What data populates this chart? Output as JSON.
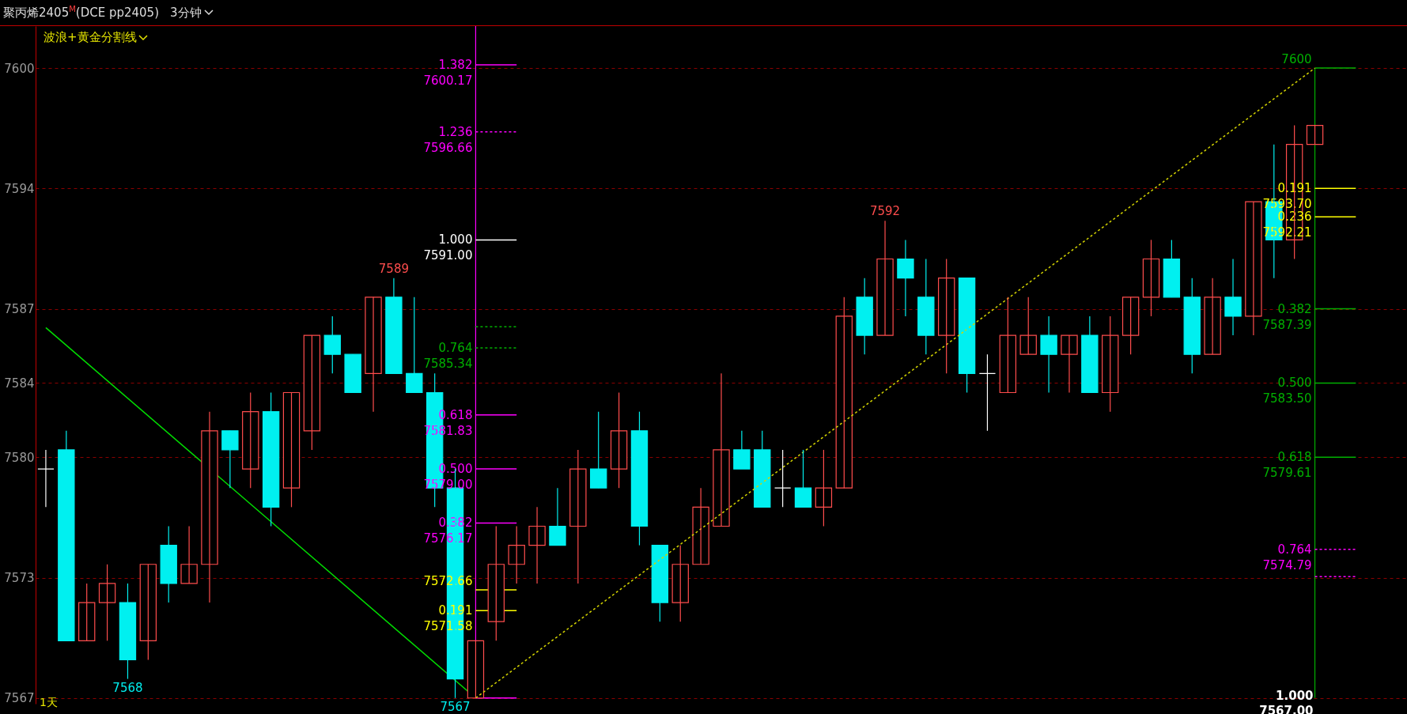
{
  "chart_data": {
    "type": "candlestick",
    "title": "聚丙烯2405$^{M}$(DCE pp2405)",
    "subtitle": "3分钟",
    "categories": [
      null,
      null,
      null,
      null,
      null,
      null,
      null,
      null,
      null,
      null,
      null,
      null,
      null,
      null,
      null,
      null,
      null,
      null,
      null,
      null,
      null,
      null,
      null,
      null,
      null,
      null,
      null,
      null,
      null,
      null,
      null,
      null,
      null,
      null,
      null,
      null,
      null,
      null,
      null,
      null,
      null,
      null,
      null,
      null,
      null,
      null,
      null,
      null,
      null,
      null,
      null,
      null,
      null,
      null,
      null,
      null,
      null,
      null,
      null,
      null,
      null,
      null,
      null,
      null,
      null,
      null,
      null
    ],
    "ohlc": [
      [
        7579,
        7580,
        7577,
        7579
      ],
      [
        7580,
        7581,
        7570,
        7570
      ],
      [
        7570,
        7573,
        7570,
        7572
      ],
      [
        7572,
        7574,
        7570,
        7573
      ],
      [
        7572,
        7573,
        7568,
        7569
      ],
      [
        7570,
        7574,
        7569,
        7574
      ],
      [
        7575,
        7576,
        7572,
        7573
      ],
      [
        7573,
        7576,
        7573,
        7574
      ],
      [
        7574,
        7582,
        7572,
        7581
      ],
      [
        7581,
        7581,
        7578,
        7580
      ],
      [
        7579,
        7583,
        7578,
        7582
      ],
      [
        7582,
        7583,
        7576,
        7577
      ],
      [
        7578,
        7583,
        7577,
        7583
      ],
      [
        7581,
        7586,
        7580,
        7586
      ],
      [
        7586,
        7587,
        7584,
        7585
      ],
      [
        7585,
        7585,
        7583,
        7583
      ],
      [
        7584,
        7588,
        7582,
        7588
      ],
      [
        7588,
        7589,
        7584,
        7584
      ],
      [
        7584,
        7588,
        7583,
        7583
      ],
      [
        7583,
        7584,
        7577,
        7578
      ],
      [
        7578,
        7579,
        7567,
        7568
      ],
      [
        7567,
        7570,
        7567,
        7570
      ],
      [
        7571,
        7576,
        7570,
        7574
      ],
      [
        7574,
        7576,
        7573,
        7575
      ],
      [
        7575,
        7577,
        7573,
        7576
      ],
      [
        7576,
        7578,
        7575,
        7575
      ],
      [
        7576,
        7580,
        7573,
        7579
      ],
      [
        7579,
        7582,
        7578,
        7578
      ],
      [
        7579,
        7583,
        7578,
        7581
      ],
      [
        7581,
        7582,
        7575,
        7576
      ],
      [
        7575,
        7575,
        7571,
        7572
      ],
      [
        7572,
        7575,
        7571,
        7574
      ],
      [
        7574,
        7578,
        7574,
        7577
      ],
      [
        7576,
        7584,
        7576,
        7580
      ],
      [
        7580,
        7581,
        7579,
        7579
      ],
      [
        7580,
        7581,
        7577,
        7577
      ],
      [
        7578,
        7580,
        7577,
        7578
      ],
      [
        7578,
        7580,
        7577,
        7577
      ],
      [
        7577,
        7580,
        7576,
        7578
      ],
      [
        7578,
        7588,
        7578,
        7587
      ],
      [
        7588,
        7589,
        7585,
        7586
      ],
      [
        7586,
        7592,
        7586,
        7590
      ],
      [
        7590,
        7591,
        7587,
        7589
      ],
      [
        7588,
        7590,
        7585,
        7586
      ],
      [
        7586,
        7590,
        7584,
        7589
      ],
      [
        7589,
        7589,
        7583,
        7584
      ],
      [
        7584,
        7585,
        7581,
        7584
      ],
      [
        7583,
        7588,
        7583,
        7586
      ],
      [
        7585,
        7588,
        7585,
        7586
      ],
      [
        7586,
        7587,
        7583,
        7585
      ],
      [
        7585,
        7586,
        7583,
        7586
      ],
      [
        7586,
        7587,
        7583,
        7583
      ],
      [
        7583,
        7587,
        7582,
        7586
      ],
      [
        7586,
        7588,
        7585,
        7588
      ],
      [
        7588,
        7591,
        7587,
        7590
      ],
      [
        7590,
        7591,
        7588,
        7588
      ],
      [
        7588,
        7589,
        7584,
        7585
      ],
      [
        7585,
        7589,
        7585,
        7588
      ],
      [
        7588,
        7590,
        7586,
        7587
      ],
      [
        7587,
        7593,
        7586,
        7593
      ],
      [
        7593,
        7596,
        7589,
        7591
      ],
      [
        7591,
        7597,
        7590,
        7596
      ],
      [
        7596,
        7597,
        7596,
        7597
      ],
      null,
      null,
      null,
      null
    ],
    "colors": [
      "#ffffff",
      "#00f0f0",
      "#ff4d4d",
      "#ff4d4d",
      "#00f0f0",
      "#ff4d4d",
      "#00f0f0",
      "#ff4d4d",
      "#ff4d4d",
      "#00f0f0",
      "#ff4d4d",
      "#00f0f0",
      "#ff4d4d",
      "#ff4d4d",
      "#00f0f0",
      "#00f0f0",
      "#ff4d4d",
      "#00f0f0",
      "#00f0f0",
      "#00f0f0",
      "#00f0f0",
      "#ff4d4d",
      "#ff4d4d",
      "#ff4d4d",
      "#ff4d4d",
      "#00f0f0",
      "#ff4d4d",
      "#00f0f0",
      "#ff4d4d",
      "#00f0f0",
      "#00f0f0",
      "#ff4d4d",
      "#ff4d4d",
      "#ff4d4d",
      "#00f0f0",
      "#00f0f0",
      "#ffffff",
      "#00f0f0",
      "#ff4d4d",
      "#ff4d4d",
      "#00f0f0",
      "#ff4d4d",
      "#00f0f0",
      "#00f0f0",
      "#ff4d4d",
      "#00f0f0",
      "#ffffff",
      "#ff4d4d",
      "#ff4d4d",
      "#00f0f0",
      "#ff4d4d",
      "#00f0f0",
      "#ff4d4d",
      "#ff4d4d",
      "#ff4d4d",
      "#00f0f0",
      "#00f0f0",
      "#ff4d4d",
      "#00f0f0",
      "#ff4d4d",
      "#00f0f0",
      "#ff4d4d",
      "#ff4d4d",
      null,
      null,
      null,
      null
    ],
    "series": [
      {
        "type": "line",
        "color": "#00e000",
        "values": [
          7586.4,
          null,
          null,
          null,
          null,
          null,
          null,
          null,
          null,
          null,
          null,
          null,
          null,
          null,
          null,
          null,
          null,
          null,
          null,
          null,
          null,
          7567,
          null,
          null,
          null,
          null,
          null,
          null,
          null,
          null,
          null,
          null,
          null,
          null,
          null,
          null,
          null,
          null,
          null,
          null,
          null,
          null,
          null,
          null,
          null,
          null,
          null,
          null,
          null,
          null,
          null,
          null,
          null,
          null,
          null,
          null,
          null,
          null,
          null,
          null,
          null,
          null,
          null,
          null,
          null,
          null,
          null
        ]
      },
      {
        "type": "line",
        "color": "#d4d400",
        "line_style": "dotted",
        "values": [
          null,
          null,
          null,
          null,
          null,
          null,
          null,
          null,
          null,
          null,
          null,
          null,
          null,
          null,
          null,
          null,
          null,
          null,
          null,
          null,
          null,
          7567,
          null,
          null,
          null,
          null,
          null,
          null,
          null,
          null,
          null,
          null,
          null,
          null,
          null,
          null,
          null,
          null,
          null,
          null,
          null,
          null,
          null,
          null,
          null,
          null,
          null,
          null,
          null,
          null,
          null,
          null,
          null,
          null,
          null,
          null,
          null,
          null,
          null,
          null,
          null,
          null,
          7600,
          null,
          null,
          null,
          null
        ]
      },
      {
        "type": "line",
        "color": "#ff00ff",
        "name": "1.382\n7600.17",
        "values": [
          null,
          null,
          null,
          null,
          null,
          null,
          null,
          null,
          null,
          null,
          null,
          null,
          null,
          null,
          null,
          null,
          null,
          null,
          null,
          null,
          null,
          7600.17,
          null,
          7600.17,
          null,
          null,
          null,
          null,
          null,
          null,
          null,
          null,
          null,
          null,
          null,
          null,
          null,
          null,
          null,
          null,
          null,
          null,
          null,
          null,
          null,
          null,
          null,
          null,
          null,
          null,
          null,
          null,
          null,
          null,
          null,
          null,
          null,
          null,
          null,
          null,
          null,
          null,
          null,
          null,
          null,
          null,
          null
        ]
      },
      {
        "type": "line",
        "color": "#ff00ff",
        "line_style": "dotted",
        "name": "1.236\n7596.66",
        "values": [
          null,
          null,
          null,
          null,
          null,
          null,
          null,
          null,
          null,
          null,
          null,
          null,
          null,
          null,
          null,
          null,
          null,
          null,
          null,
          null,
          null,
          7596.66,
          null,
          7596.66,
          null,
          null,
          null,
          null,
          null,
          null,
          null,
          null,
          null,
          null,
          null,
          null,
          null,
          null,
          null,
          null,
          null,
          null,
          null,
          null,
          null,
          null,
          null,
          null,
          null,
          null,
          null,
          null,
          null,
          null,
          null,
          null,
          null,
          null,
          null,
          null,
          null,
          null,
          null,
          null,
          null,
          null,
          null
        ]
      },
      {
        "type": "line",
        "color": "#ffffff",
        "name": "1.000\n7591.00",
        "values": [
          null,
          null,
          null,
          null,
          null,
          null,
          null,
          null,
          null,
          null,
          null,
          null,
          null,
          null,
          null,
          null,
          null,
          null,
          null,
          null,
          null,
          7591.0,
          null,
          7591.0,
          null,
          null,
          null,
          null,
          null,
          null,
          null,
          null,
          null,
          null,
          null,
          null,
          null,
          null,
          null,
          null,
          null,
          null,
          null,
          null,
          null,
          null,
          null,
          null,
          null,
          null,
          null,
          null,
          null,
          null,
          null,
          null,
          null,
          null,
          null,
          null,
          null,
          null,
          null,
          null,
          null,
          null,
          null
        ]
      },
      {
        "type": "line",
        "color": "#00b000",
        "line_style": "dotted",
        "values": [
          null,
          null,
          null,
          null,
          null,
          null,
          null,
          null,
          null,
          null,
          null,
          null,
          null,
          null,
          null,
          null,
          null,
          null,
          null,
          null,
          null,
          7586.45,
          null,
          7586.45,
          null,
          null,
          null,
          null,
          null,
          null,
          null,
          null,
          null,
          null,
          null,
          null,
          null,
          null,
          null,
          null,
          null,
          null,
          null,
          null,
          null,
          null,
          null,
          null,
          null,
          null,
          null,
          null,
          null,
          null,
          null,
          null,
          null,
          null,
          null,
          null,
          null,
          null,
          null,
          null,
          null,
          null,
          null
        ]
      },
      {
        "type": "line",
        "color": "#00b000",
        "line_style": "dotted",
        "name": "0.764\n7585.34",
        "values": [
          null,
          null,
          null,
          null,
          null,
          null,
          null,
          null,
          null,
          null,
          null,
          null,
          null,
          null,
          null,
          null,
          null,
          null,
          null,
          null,
          null,
          7585.34,
          null,
          7585.34,
          null,
          null,
          null,
          null,
          null,
          null,
          null,
          null,
          null,
          null,
          null,
          null,
          null,
          null,
          null,
          null,
          null,
          null,
          null,
          null,
          null,
          null,
          null,
          null,
          null,
          null,
          null,
          null,
          null,
          null,
          null,
          null,
          null,
          null,
          null,
          null,
          null,
          null,
          null,
          null,
          null,
          null,
          null
        ]
      },
      {
        "type": "line",
        "color": "#ff00ff",
        "name": "0.618\n7581.83",
        "values": [
          null,
          null,
          null,
          null,
          null,
          null,
          null,
          null,
          null,
          null,
          null,
          null,
          null,
          null,
          null,
          null,
          null,
          null,
          null,
          null,
          null,
          7581.83,
          null,
          7581.83,
          null,
          null,
          null,
          null,
          null,
          null,
          null,
          null,
          null,
          null,
          null,
          null,
          null,
          null,
          null,
          null,
          null,
          null,
          null,
          null,
          null,
          null,
          null,
          null,
          null,
          null,
          null,
          null,
          null,
          null,
          null,
          null,
          null,
          null,
          null,
          null,
          null,
          null,
          null,
          null,
          null,
          null,
          null
        ]
      },
      {
        "type": "line",
        "color": "#ff00ff",
        "name": "0.500\n7579.00",
        "values": [
          null,
          null,
          null,
          null,
          null,
          null,
          null,
          null,
          null,
          null,
          null,
          null,
          null,
          null,
          null,
          null,
          null,
          null,
          null,
          null,
          null,
          7579.0,
          null,
          7579.0,
          null,
          null,
          null,
          null,
          null,
          null,
          null,
          null,
          null,
          null,
          null,
          null,
          null,
          null,
          null,
          null,
          null,
          null,
          null,
          null,
          null,
          null,
          null,
          null,
          null,
          null,
          null,
          null,
          null,
          null,
          null,
          null,
          null,
          null,
          null,
          null,
          null,
          null,
          null,
          null,
          null,
          null,
          null
        ]
      },
      {
        "type": "line",
        "color": "#ff00ff",
        "name": "0.382\n7576.17",
        "values": [
          null,
          null,
          null,
          null,
          null,
          null,
          null,
          null,
          null,
          null,
          null,
          null,
          null,
          null,
          null,
          null,
          null,
          null,
          null,
          null,
          null,
          7576.17,
          null,
          7576.17,
          null,
          null,
          null,
          null,
          null,
          null,
          null,
          null,
          null,
          null,
          null,
          null,
          null,
          null,
          null,
          null,
          null,
          null,
          null,
          null,
          null,
          null,
          null,
          null,
          null,
          null,
          null,
          null,
          null,
          null,
          null,
          null,
          null,
          null,
          null,
          null,
          null,
          null,
          null,
          null,
          null,
          null,
          null
        ]
      },
      {
        "type": "line",
        "color": "#ffff00",
        "name": "7572.66",
        "values": [
          null,
          null,
          null,
          null,
          null,
          null,
          null,
          null,
          null,
          null,
          null,
          null,
          null,
          null,
          null,
          null,
          null,
          null,
          null,
          null,
          null,
          7572.66,
          null,
          7572.66,
          null,
          null,
          null,
          null,
          null,
          null,
          null,
          null,
          null,
          null,
          null,
          null,
          null,
          null,
          null,
          null,
          null,
          null,
          null,
          null,
          null,
          null,
          null,
          null,
          null,
          null,
          null,
          null,
          null,
          null,
          null,
          null,
          null,
          null,
          null,
          null,
          null,
          null,
          null,
          null,
          null,
          null,
          null
        ]
      },
      {
        "type": "line",
        "color": "#ffff00",
        "name": "0.191\n7571.58",
        "values": [
          null,
          null,
          null,
          null,
          null,
          null,
          null,
          null,
          null,
          null,
          null,
          null,
          null,
          null,
          null,
          null,
          null,
          null,
          null,
          null,
          null,
          7571.58,
          null,
          7571.58,
          null,
          null,
          null,
          null,
          null,
          null,
          null,
          null,
          null,
          null,
          null,
          null,
          null,
          null,
          null,
          null,
          null,
          null,
          null,
          null,
          null,
          null,
          null,
          null,
          null,
          null,
          null,
          null,
          null,
          null,
          null,
          null,
          null,
          null,
          null,
          null,
          null,
          null,
          null,
          null,
          null,
          null,
          null
        ]
      },
      {
        "type": "line",
        "color": "#ff00ff",
        "values": [
          null,
          null,
          null,
          null,
          null,
          null,
          null,
          null,
          null,
          null,
          null,
          null,
          null,
          null,
          null,
          null,
          null,
          null,
          null,
          null,
          null,
          7567,
          null,
          7567,
          null,
          null,
          null,
          null,
          null,
          null,
          null,
          null,
          null,
          null,
          null,
          null,
          null,
          null,
          null,
          null,
          null,
          null,
          null,
          null,
          null,
          null,
          null,
          null,
          null,
          null,
          null,
          null,
          null,
          null,
          null,
          null,
          null,
          null,
          null,
          null,
          null,
          null,
          null,
          null,
          null,
          null,
          null
        ]
      },
      {
        "type": "line",
        "color": "#00b000",
        "name": "7600",
        "values": [
          null,
          null,
          null,
          null,
          null,
          null,
          null,
          null,
          null,
          null,
          null,
          null,
          null,
          null,
          null,
          null,
          null,
          null,
          null,
          null,
          null,
          null,
          null,
          null,
          null,
          null,
          null,
          null,
          null,
          null,
          null,
          null,
          null,
          null,
          null,
          null,
          null,
          null,
          null,
          null,
          null,
          null,
          null,
          null,
          null,
          null,
          null,
          null,
          null,
          null,
          null,
          null,
          null,
          null,
          null,
          null,
          null,
          null,
          null,
          null,
          null,
          null,
          7600,
          null,
          7600,
          null,
          null
        ]
      },
      {
        "type": "line",
        "color": "#ffff00",
        "name": "0.191\n7593.70",
        "values": [
          null,
          null,
          null,
          null,
          null,
          null,
          null,
          null,
          null,
          null,
          null,
          null,
          null,
          null,
          null,
          null,
          null,
          null,
          null,
          null,
          null,
          null,
          null,
          null,
          null,
          null,
          null,
          null,
          null,
          null,
          null,
          null,
          null,
          null,
          null,
          null,
          null,
          null,
          null,
          null,
          null,
          null,
          null,
          null,
          null,
          null,
          null,
          null,
          null,
          null,
          null,
          null,
          null,
          null,
          null,
          null,
          null,
          null,
          null,
          null,
          null,
          null,
          7593.7,
          null,
          7593.7,
          null,
          null
        ]
      },
      {
        "type": "line",
        "color": "#ffff00",
        "name": "0.236\n7592.21",
        "values": [
          null,
          null,
          null,
          null,
          null,
          null,
          null,
          null,
          null,
          null,
          null,
          null,
          null,
          null,
          null,
          null,
          null,
          null,
          null,
          null,
          null,
          null,
          null,
          null,
          null,
          null,
          null,
          null,
          null,
          null,
          null,
          null,
          null,
          null,
          null,
          null,
          null,
          null,
          null,
          null,
          null,
          null,
          null,
          null,
          null,
          null,
          null,
          null,
          null,
          null,
          null,
          null,
          null,
          null,
          null,
          null,
          null,
          null,
          null,
          null,
          null,
          null,
          7592.21,
          null,
          7592.21,
          null,
          null
        ]
      },
      {
        "type": "line",
        "color": "#00b000",
        "name": "0.382\n7587.39",
        "values": [
          null,
          null,
          null,
          null,
          null,
          null,
          null,
          null,
          null,
          null,
          null,
          null,
          null,
          null,
          null,
          null,
          null,
          null,
          null,
          null,
          null,
          null,
          null,
          null,
          null,
          null,
          null,
          null,
          null,
          null,
          null,
          null,
          null,
          null,
          null,
          null,
          null,
          null,
          null,
          null,
          null,
          null,
          null,
          null,
          null,
          null,
          null,
          null,
          null,
          null,
          null,
          null,
          null,
          null,
          null,
          null,
          null,
          null,
          null,
          null,
          null,
          null,
          7587.39,
          null,
          7587.39,
          null,
          null
        ]
      },
      {
        "type": "line",
        "color": "#00b000",
        "name": "0.500\n7583.50",
        "values": [
          null,
          null,
          null,
          null,
          null,
          null,
          null,
          null,
          null,
          null,
          null,
          null,
          null,
          null,
          null,
          null,
          null,
          null,
          null,
          null,
          null,
          null,
          null,
          null,
          null,
          null,
          null,
          null,
          null,
          null,
          null,
          null,
          null,
          null,
          null,
          null,
          null,
          null,
          null,
          null,
          null,
          null,
          null,
          null,
          null,
          null,
          null,
          null,
          null,
          null,
          null,
          null,
          null,
          null,
          null,
          null,
          null,
          null,
          null,
          null,
          null,
          null,
          7583.5,
          null,
          7583.5,
          null,
          null
        ]
      },
      {
        "type": "line",
        "color": "#00b000",
        "name": "0.618\n7579.61",
        "values": [
          null,
          null,
          null,
          null,
          null,
          null,
          null,
          null,
          null,
          null,
          null,
          null,
          null,
          null,
          null,
          null,
          null,
          null,
          null,
          null,
          null,
          null,
          null,
          null,
          null,
          null,
          null,
          null,
          null,
          null,
          null,
          null,
          null,
          null,
          null,
          null,
          null,
          null,
          null,
          null,
          null,
          null,
          null,
          null,
          null,
          null,
          null,
          null,
          null,
          null,
          null,
          null,
          null,
          null,
          null,
          null,
          null,
          null,
          null,
          null,
          null,
          null,
          7579.61,
          null,
          7579.61,
          null,
          null
        ]
      },
      {
        "type": "line",
        "color": "#ff00ff",
        "line_style": "dotted",
        "name": "0.764\n7574.79",
        "values": [
          null,
          null,
          null,
          null,
          null,
          null,
          null,
          null,
          null,
          null,
          null,
          null,
          null,
          null,
          null,
          null,
          null,
          null,
          null,
          null,
          null,
          null,
          null,
          null,
          null,
          null,
          null,
          null,
          null,
          null,
          null,
          null,
          null,
          null,
          null,
          null,
          null,
          null,
          null,
          null,
          null,
          null,
          null,
          null,
          null,
          null,
          null,
          null,
          null,
          null,
          null,
          null,
          null,
          null,
          null,
          null,
          null,
          null,
          null,
          null,
          null,
          null,
          7574.79,
          null,
          7574.79,
          null,
          null
        ]
      },
      {
        "type": "line",
        "color": "#ff00ff",
        "line_style": "dotted",
        "values": [
          null,
          null,
          null,
          null,
          null,
          null,
          null,
          null,
          null,
          null,
          null,
          null,
          null,
          null,
          null,
          null,
          null,
          null,
          null,
          null,
          null,
          null,
          null,
          null,
          null,
          null,
          null,
          null,
          null,
          null,
          null,
          null,
          null,
          null,
          null,
          null,
          null,
          null,
          null,
          null,
          null,
          null,
          null,
          null,
          null,
          null,
          null,
          null,
          null,
          null,
          null,
          null,
          null,
          null,
          null,
          null,
          null,
          null,
          null,
          null,
          null,
          null,
          7573.36,
          null,
          7573.36,
          null,
          null
        ]
      }
    ],
    "annotations": [
      "波浪+黄金分割线",
      "1天",
      {
        "text": "7589",
        "y": 7589
      },
      {
        "text": "7568",
        "y": 7568
      },
      {
        "text": "7567",
        "y": 7567
      },
      {
        "text": "7592",
        "y": 7592
      },
      "1.000\n7567.00"
    ],
    "ylim": [
      7566.7,
      7602.2
    ],
    "yticks": [
      7600,
      {
        "value": 7593.7,
        "label": "7594"
      },
      {
        "value": 7587.39,
        "label": "7587"
      },
      {
        "value": 7583.5,
        "label": "7584"
      },
      {
        "value": 7579.61,
        "label": "7580"
      },
      {
        "value": 7573.3,
        "label": "7573"
      },
      7567
    ],
    "tick_labels": "y",
    "grid": "y"
  }
}
